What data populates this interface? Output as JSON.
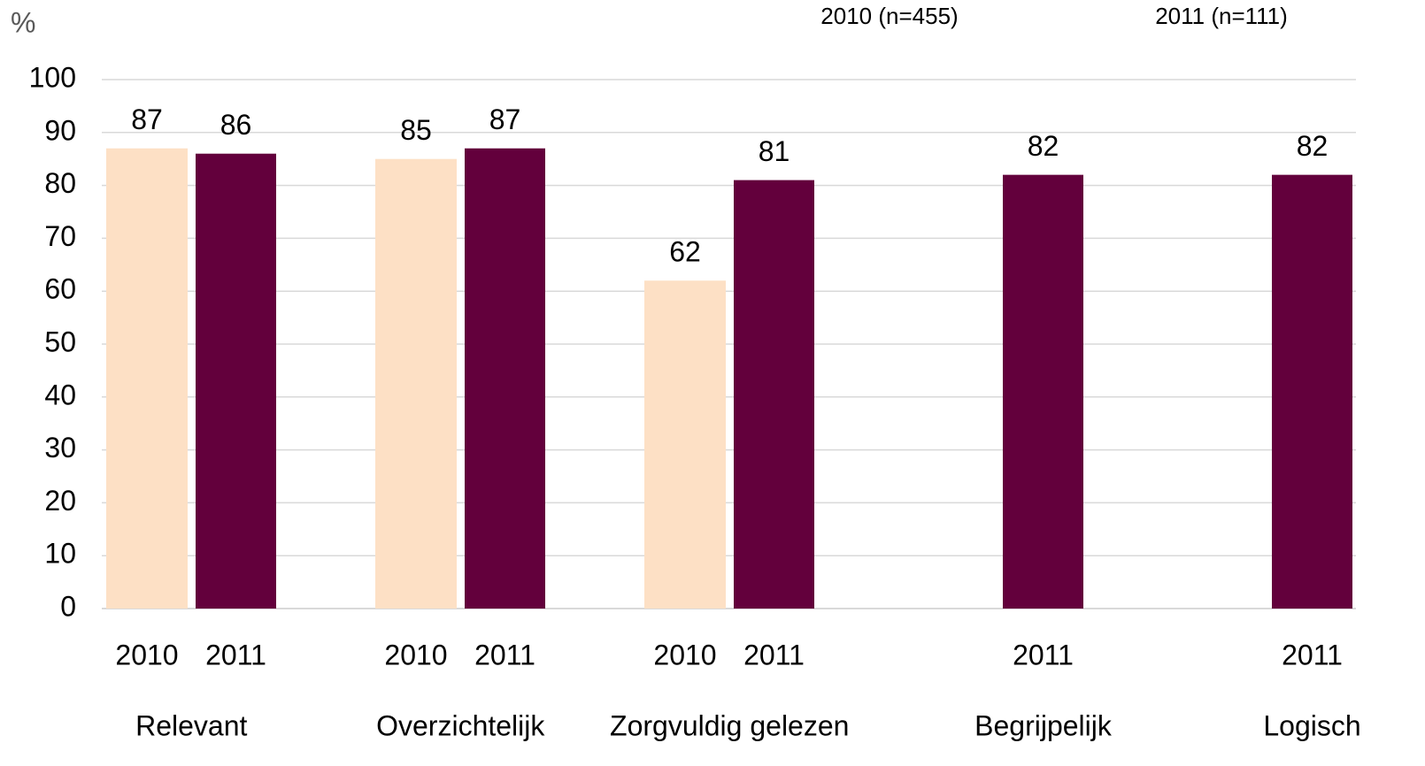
{
  "chart_data": {
    "type": "bar",
    "ylabel": "%",
    "categories": [
      "Relevant",
      "Overzichtelijk",
      "Zorgvuldig gelezen",
      "Begrijpelijk",
      "Logisch"
    ],
    "series": [
      {
        "name": "2010 (n=455)",
        "label": "2010",
        "color": "#fde0c5",
        "values": [
          87,
          85,
          62,
          null,
          null
        ]
      },
      {
        "name": "2011 (n=111)",
        "label": "2011",
        "color": "#63003c",
        "values": [
          86,
          87,
          81,
          82,
          82
        ]
      }
    ],
    "ylim": [
      0,
      100
    ],
    "yticks": [
      0,
      10,
      20,
      30,
      40,
      50,
      60,
      70,
      80,
      90,
      100
    ],
    "grid": true,
    "legend": "top"
  }
}
